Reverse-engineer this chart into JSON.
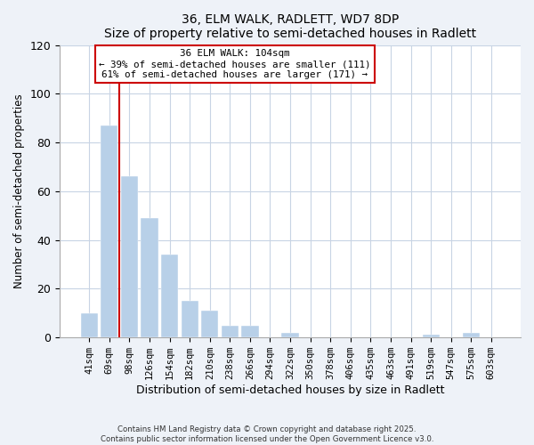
{
  "title": "36, ELM WALK, RADLETT, WD7 8DP",
  "subtitle": "Size of property relative to semi-detached houses in Radlett",
  "xlabel": "Distribution of semi-detached houses by size in Radlett",
  "ylabel": "Number of semi-detached properties",
  "bar_labels": [
    "41sqm",
    "69sqm",
    "98sqm",
    "126sqm",
    "154sqm",
    "182sqm",
    "210sqm",
    "238sqm",
    "266sqm",
    "294sqm",
    "322sqm",
    "350sqm",
    "378sqm",
    "406sqm",
    "435sqm",
    "463sqm",
    "491sqm",
    "519sqm",
    "547sqm",
    "575sqm",
    "603sqm"
  ],
  "bar_values": [
    10,
    87,
    66,
    49,
    34,
    15,
    11,
    5,
    5,
    0,
    2,
    0,
    0,
    0,
    0,
    0,
    0,
    1,
    0,
    2,
    0
  ],
  "bar_color": "#b8d0e8",
  "highlight_color": "#cc0000",
  "red_line_x": 1.5,
  "annotation_title": "36 ELM WALK: 104sqm",
  "annotation_line1": "← 39% of semi-detached houses are smaller (111)",
  "annotation_line2": "61% of semi-detached houses are larger (171) →",
  "ylim": [
    0,
    120
  ],
  "yticks": [
    0,
    20,
    40,
    60,
    80,
    100,
    120
  ],
  "footer_line1": "Contains HM Land Registry data © Crown copyright and database right 2025.",
  "footer_line2": "Contains public sector information licensed under the Open Government Licence v3.0.",
  "bg_color": "#eef2f8",
  "plot_bg_color": "#ffffff",
  "grid_color": "#c8d4e4"
}
